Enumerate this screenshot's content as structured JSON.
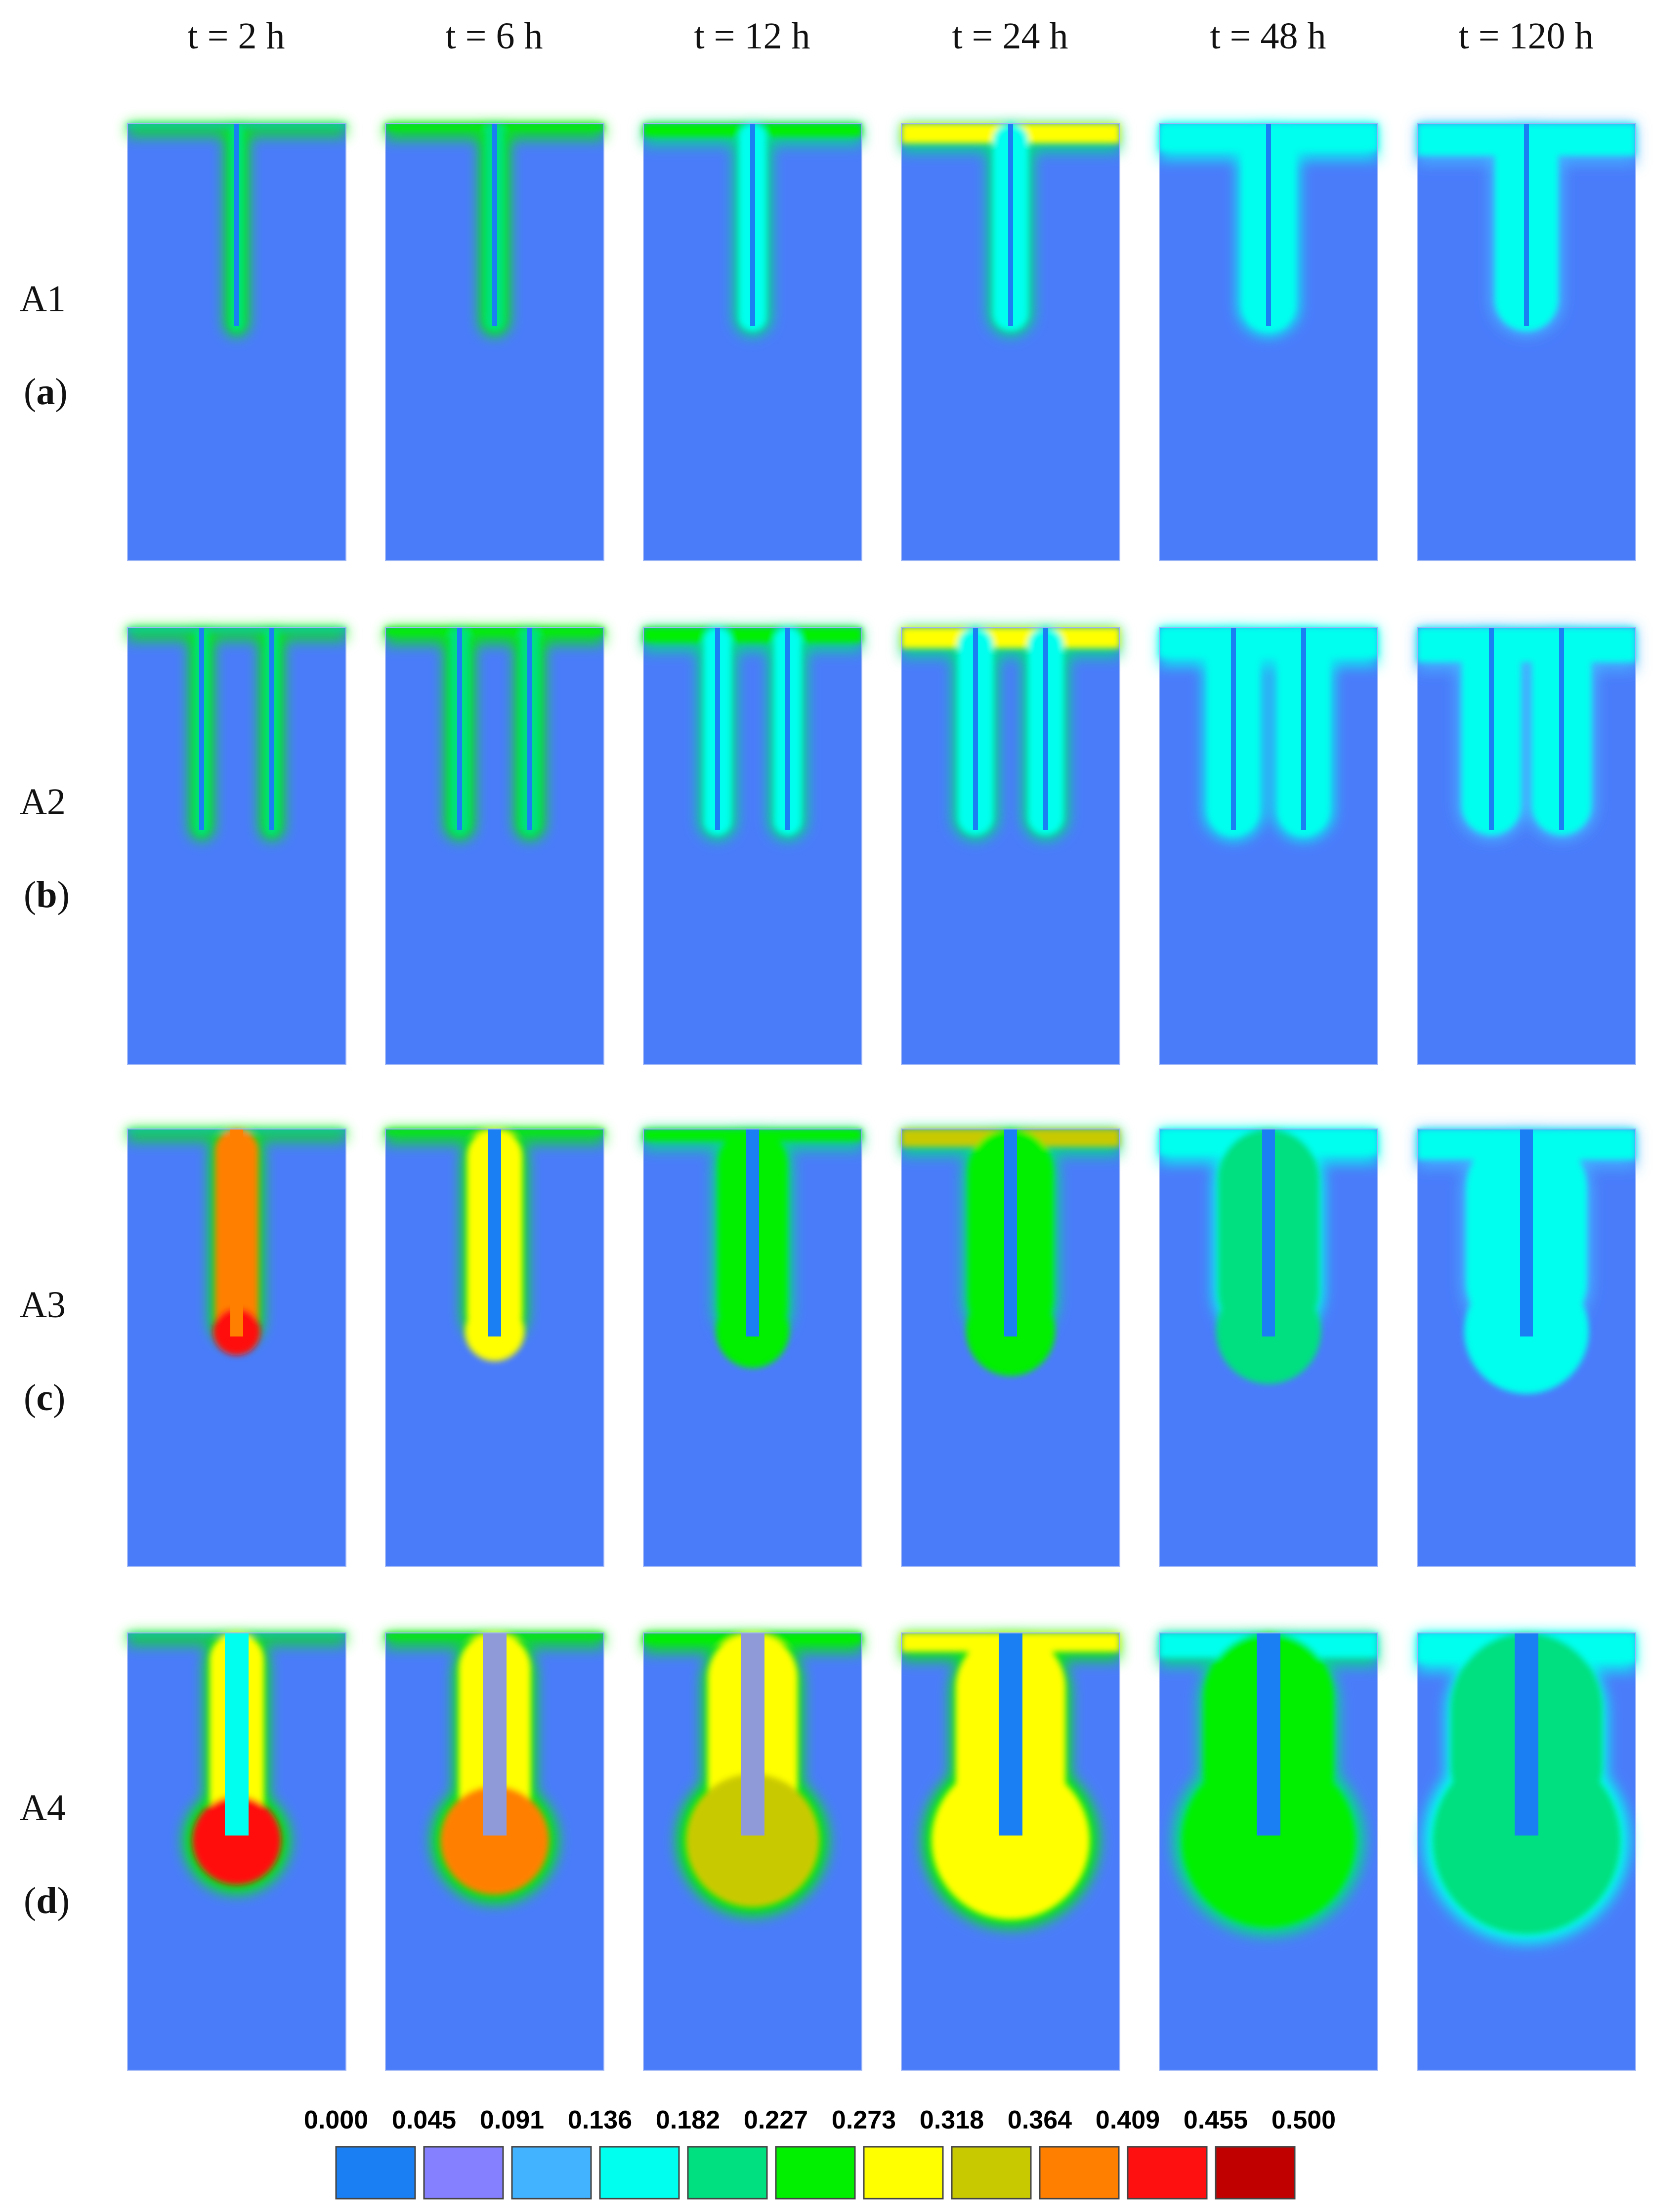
{
  "figure": {
    "time_labels": [
      "t = 2 h",
      "t = 6 h",
      "t = 12 h",
      "t = 24 h",
      "t = 48 h",
      "t = 120 h"
    ],
    "rows": [
      {
        "name": "A1",
        "letter": "a",
        "rods": 1,
        "rod_type": "thin"
      },
      {
        "name": "A2",
        "letter": "b",
        "rods": 2,
        "rod_type": "thin"
      },
      {
        "name": "A3",
        "letter": "c",
        "rods": 1,
        "rod_type": "medium"
      },
      {
        "name": "A4",
        "letter": "d",
        "rods": 1,
        "rod_type": "thick"
      }
    ],
    "legend": {
      "values": [
        "0.000",
        "0.045",
        "0.091",
        "0.136",
        "0.182",
        "0.227",
        "0.273",
        "0.318",
        "0.364",
        "0.409",
        "0.455",
        "0.500"
      ],
      "colors": [
        "#1a7ff2",
        "#8580ff",
        "#42b3ff",
        "#00ffee",
        "#00e080",
        "#00f000",
        "#ffff00",
        "#c9c900",
        "#ff8000",
        "#ff1010",
        "#c00000"
      ]
    },
    "background_color": "#4a7cfa"
  }
}
